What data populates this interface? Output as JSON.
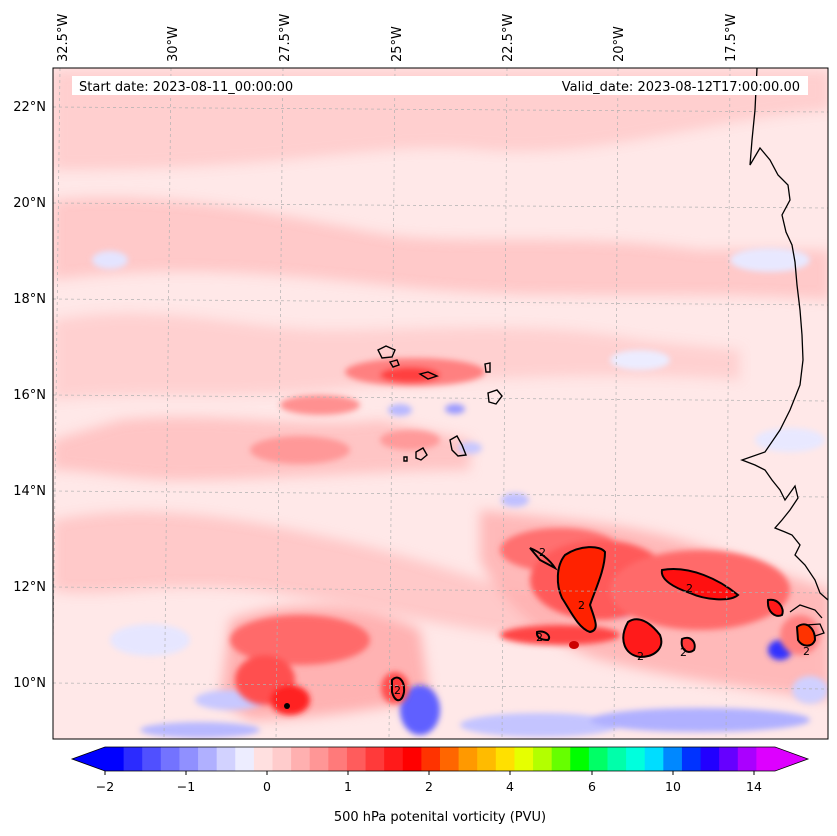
{
  "header": {
    "start_date": "Start date: 2023-08-11_00:00:00",
    "valid_date": "Valid_date: 2023-08-12T17:00:00.00"
  },
  "axes": {
    "lon_ticks": [
      "32.5°W",
      "30°W",
      "27.5°W",
      "25°W",
      "22.5°W",
      "20°W",
      "17.5°W"
    ],
    "lat_ticks": [
      "22°N",
      "20°N",
      "18°N",
      "16°N",
      "14°N",
      "12°N",
      "10°N"
    ]
  },
  "colorbar": {
    "tick_labels": [
      "−2",
      "−1",
      "0",
      "1",
      "2",
      "4",
      "6",
      "10",
      "14"
    ],
    "title": "500 hPa potenital vorticity (PVU)",
    "colors": [
      "#0000ff",
      "#2b2bff",
      "#5050ff",
      "#7373ff",
      "#9090ff",
      "#b0b0ff",
      "#d2d2ff",
      "#ededff",
      "#ffe0e0",
      "#ffcccc",
      "#ffb0b0",
      "#ff9696",
      "#ff7a7a",
      "#ff5c5c",
      "#ff3a3a",
      "#ff1a1a",
      "#ff0000",
      "#ff3300",
      "#ff6600",
      "#ff9900",
      "#ffbb00",
      "#ffe000",
      "#e6ff00",
      "#b3ff00",
      "#66ff00",
      "#00ff00",
      "#00ff66",
      "#00ffaa",
      "#00ffdd",
      "#00ddff",
      "#0088ff",
      "#0033ff",
      "#2200ff",
      "#6600ff",
      "#aa00ff",
      "#dd00ff"
    ]
  },
  "contour_labels": [
    "2",
    "2",
    "2",
    "2",
    "2",
    "2",
    "2",
    "2"
  ],
  "map": {
    "background_color": "#ffe8e8",
    "ocean_color": "#ffe8e8"
  }
}
